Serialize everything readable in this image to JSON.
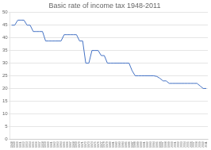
{
  "chart_data": {
    "type": "line",
    "title": "Basic rate of income tax 1948-2011",
    "x": [
      1948,
      1949,
      1950,
      1951,
      1952,
      1953,
      1954,
      1955,
      1956,
      1957,
      1958,
      1959,
      1960,
      1961,
      1962,
      1963,
      1964,
      1965,
      1966,
      1967,
      1968,
      1969,
      1970,
      1971,
      1972,
      1973,
      1974,
      1975,
      1976,
      1977,
      1978,
      1979,
      1980,
      1981,
      1982,
      1983,
      1984,
      1985,
      1986,
      1987,
      1988,
      1989,
      1990,
      1991,
      1992,
      1993,
      1994,
      1995,
      1996,
      1997,
      1998,
      1999,
      2000,
      2001,
      2002,
      2003,
      2004,
      2005,
      2006,
      2007,
      2008,
      2009,
      2010,
      2011
    ],
    "values": [
      45,
      45,
      47,
      47,
      47,
      45,
      45,
      42.5,
      42.5,
      42.5,
      42.5,
      38.75,
      38.75,
      38.75,
      38.75,
      38.75,
      38.75,
      41.25,
      41.25,
      41.25,
      41.25,
      41.25,
      38.75,
      38.75,
      30,
      30,
      35,
      35,
      35,
      33,
      33,
      30,
      30,
      30,
      30,
      30,
      30,
      30,
      30,
      27,
      25,
      25,
      25,
      25,
      25,
      25,
      25,
      24.75,
      24,
      23,
      23,
      22,
      22,
      22,
      22,
      22,
      22,
      22,
      22,
      22,
      22,
      21,
      20,
      20
    ],
    "color": "#4472c4",
    "xlim": [
      1947.5,
      2011.5
    ],
    "xticks": [
      1948,
      1949,
      1950,
      1951,
      1952,
      1953,
      1954,
      1955,
      1956,
      1957,
      1958,
      1959,
      1960,
      1961,
      1962,
      1963,
      1964,
      1965,
      1966,
      1967,
      1968,
      1969,
      1970,
      1971,
      1972,
      1973,
      1974,
      1975,
      1976,
      1977,
      1978,
      1979,
      1980,
      1981,
      1982,
      1983,
      1984,
      1985,
      1986,
      1987,
      1988,
      1989,
      1990,
      1991,
      1992,
      1993,
      1994,
      1995,
      1996,
      1997,
      1998,
      1999,
      2000,
      2001,
      2002,
      2003,
      2004,
      2005,
      2006,
      2007,
      2008,
      2009,
      2010,
      2011
    ],
    "ylim": [
      0,
      50
    ],
    "yticks": [
      0,
      5,
      10,
      15,
      20,
      25,
      30,
      35,
      40,
      45,
      50
    ],
    "grid": "y"
  }
}
